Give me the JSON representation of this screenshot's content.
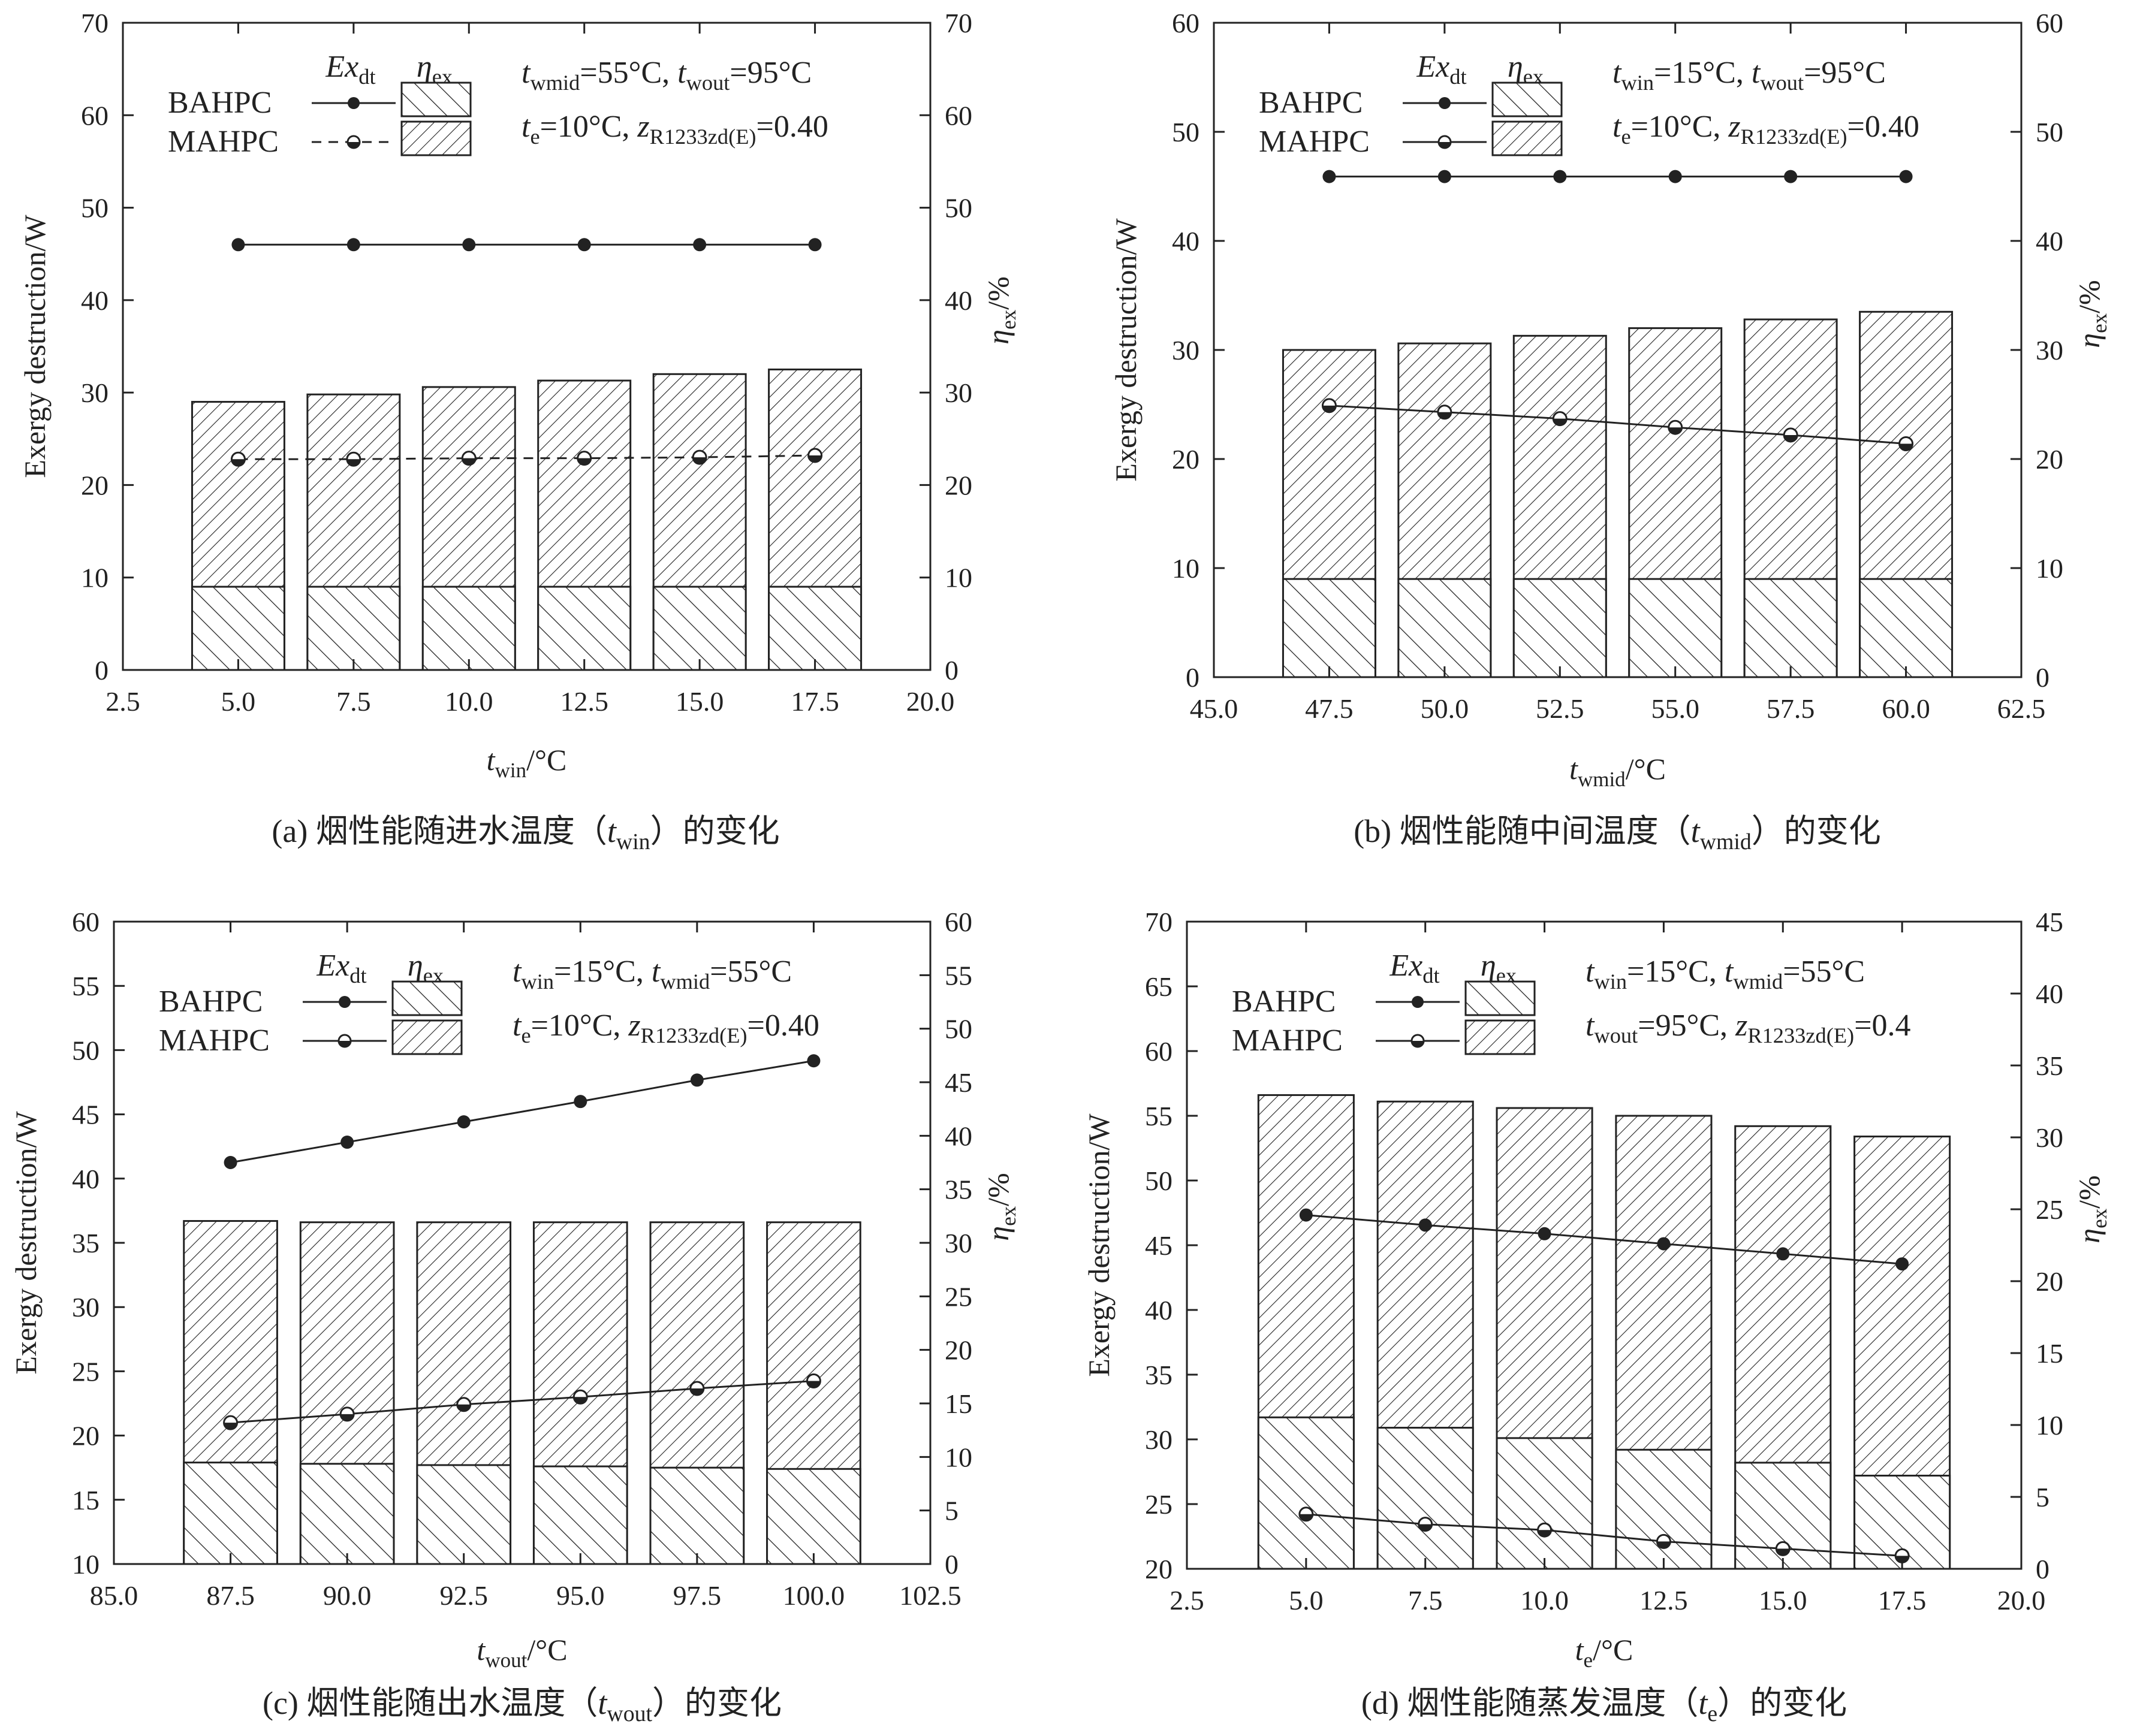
{
  "figure": {
    "legend": {
      "exdt_label": "Ex",
      "exdt_sub": "dt",
      "eta_label": "η",
      "eta_sub": "ex",
      "bahpc": "BAHPC",
      "mahpc": "MAHPC"
    },
    "y_left_label": "Exergy destruction/W",
    "y_right_label": "η",
    "y_right_sub": "ex",
    "y_right_unit": "/%"
  },
  "chart_data": [
    {
      "id": "a",
      "type": "bar",
      "caption": {
        "prefix": "(a) 烟性能随进水温度（",
        "var": "t",
        "var_sub": "win",
        "suffix": "）的变化"
      },
      "xlabel": {
        "var": "t",
        "sub": "win",
        "unit": "/°C"
      },
      "ylabel": "Exergy destruction/W",
      "y2label": "η_ex/%",
      "xlim": [
        2.5,
        20.0
      ],
      "xticks": [
        "2.5",
        "5.0",
        "7.5",
        "10.0",
        "12.5",
        "15.0",
        "17.5",
        "20.0"
      ],
      "ylim": [
        0,
        70
      ],
      "yticks": [
        0,
        10,
        20,
        30,
        40,
        50,
        60,
        70
      ],
      "y2lim": [
        0,
        70
      ],
      "y2ticks": [
        0,
        10,
        20,
        30,
        40,
        50,
        60,
        70
      ],
      "x": [
        5.0,
        7.5,
        10.0,
        12.5,
        15.0,
        17.5
      ],
      "bar_width": 2.0,
      "series": [
        {
          "name": "BAHPC Ex_dt",
          "kind": "bar",
          "values": [
            9.0,
            9.0,
            9.0,
            9.0,
            9.0,
            9.0
          ]
        },
        {
          "name": "MAHPC Ex_dt",
          "kind": "bar",
          "values": [
            29.0,
            29.8,
            30.6,
            31.3,
            32.0,
            32.5
          ]
        },
        {
          "name": "BAHPC η_ex",
          "kind": "line",
          "axis": "right",
          "values": [
            46.0,
            46.0,
            46.0,
            46.0,
            46.0,
            46.0
          ]
        },
        {
          "name": "MAHPC η_ex",
          "kind": "line",
          "axis": "right",
          "dashed": true,
          "values": [
            22.8,
            22.8,
            22.9,
            22.9,
            23.0,
            23.2
          ]
        }
      ],
      "conditions": [
        [
          {
            "v": "t",
            "s": "wmid",
            "rest": "=55°C,  "
          },
          {
            "v": "t",
            "s": "wout",
            "rest": "=95°C"
          }
        ],
        [
          {
            "v": "t",
            "s": "e",
            "rest": "=10°C,     "
          },
          {
            "v": "z",
            "s": "R1233zd(E)",
            "rest": "=0.40"
          }
        ]
      ]
    },
    {
      "id": "b",
      "type": "bar",
      "caption": {
        "prefix": "(b) 烟性能随中间温度（",
        "var": "t",
        "var_sub": "wmid",
        "suffix": "）的变化"
      },
      "xlabel": {
        "var": "t",
        "sub": "wmid",
        "unit": "/°C"
      },
      "ylabel": "Exergy destruction/W",
      "y2label": "η_ex/%",
      "xlim": [
        45.0,
        62.5
      ],
      "xticks": [
        "45.0",
        "47.5",
        "50.0",
        "52.5",
        "55.0",
        "57.5",
        "60.0",
        "62.5"
      ],
      "ylim": [
        0,
        60
      ],
      "yticks": [
        0,
        10,
        20,
        30,
        40,
        50,
        60
      ],
      "y2lim": [
        0,
        60
      ],
      "y2ticks": [
        0,
        10,
        20,
        30,
        40,
        50,
        60
      ],
      "x": [
        47.5,
        50.0,
        52.5,
        55.0,
        57.5,
        60.0
      ],
      "bar_width": 2.0,
      "series": [
        {
          "name": "BAHPC Ex_dt",
          "kind": "bar",
          "values": [
            9.0,
            9.0,
            9.0,
            9.0,
            9.0,
            9.0
          ]
        },
        {
          "name": "MAHPC Ex_dt",
          "kind": "bar",
          "values": [
            30.0,
            30.6,
            31.3,
            32.0,
            32.8,
            33.5
          ]
        },
        {
          "name": "BAHPC η_ex",
          "kind": "line",
          "axis": "right",
          "values": [
            45.9,
            45.9,
            45.9,
            45.9,
            45.9,
            45.9
          ]
        },
        {
          "name": "MAHPC η_ex",
          "kind": "line",
          "axis": "right",
          "values": [
            24.9,
            24.3,
            23.7,
            22.9,
            22.2,
            21.4
          ]
        }
      ],
      "conditions": [
        [
          {
            "v": "t",
            "s": "win",
            "rest": "=15°C,     "
          },
          {
            "v": "t",
            "s": "wout",
            "rest": "=95°C"
          }
        ],
        [
          {
            "v": "t",
            "s": "e",
            "rest": "=10°C,     "
          },
          {
            "v": "z",
            "s": "R1233zd(E)",
            "rest": "=0.40"
          }
        ]
      ]
    },
    {
      "id": "c",
      "type": "bar",
      "caption": {
        "prefix": "(c) 烟性能随出水温度（",
        "var": "t",
        "var_sub": "wout",
        "suffix": "）的变化"
      },
      "xlabel": {
        "var": "t",
        "sub": "wout",
        "unit": "/°C"
      },
      "ylabel": "Exergy destruction/W",
      "y2label": "η_ex/%",
      "xlim": [
        85.0,
        102.5
      ],
      "xticks": [
        "85.0",
        "87.5",
        "90.0",
        "92.5",
        "95.0",
        "97.5",
        "100.0",
        "102.5"
      ],
      "ylim": [
        10,
        60
      ],
      "yticks": [
        10,
        15,
        20,
        25,
        30,
        35,
        40,
        45,
        50,
        55,
        60
      ],
      "y2lim": [
        0,
        60
      ],
      "y2ticks": [
        0,
        5,
        10,
        15,
        20,
        25,
        30,
        35,
        40,
        45,
        50,
        55,
        60
      ],
      "x": [
        87.5,
        90.0,
        92.5,
        95.0,
        97.5,
        100.0
      ],
      "bar_width": 2.0,
      "series": [
        {
          "name": "BAHPC Ex_dt",
          "kind": "bar",
          "values": [
            17.9,
            17.8,
            17.7,
            17.6,
            17.5,
            17.4
          ]
        },
        {
          "name": "MAHPC Ex_dt",
          "kind": "bar",
          "values": [
            36.7,
            36.6,
            36.6,
            36.6,
            36.6,
            36.6
          ]
        },
        {
          "name": "BAHPC η_ex",
          "kind": "line",
          "axis": "right",
          "values": [
            37.5,
            39.4,
            41.3,
            43.2,
            45.2,
            47.0
          ]
        },
        {
          "name": "MAHPC η_ex",
          "kind": "line",
          "axis": "right",
          "values": [
            13.2,
            14.0,
            14.9,
            15.6,
            16.4,
            17.1
          ]
        }
      ],
      "conditions": [
        [
          {
            "v": "t",
            "s": "win",
            "rest": "=15°C,    "
          },
          {
            "v": "t",
            "s": "wmid",
            "rest": "=55°C"
          }
        ],
        [
          {
            "v": "t",
            "s": "e",
            "rest": "=10°C,     "
          },
          {
            "v": "z",
            "s": "R1233zd(E)",
            "rest": "=0.40"
          }
        ]
      ]
    },
    {
      "id": "d",
      "type": "bar",
      "caption": {
        "prefix": "(d) 烟性能随蒸发温度（",
        "var": "t",
        "var_sub": "e",
        "suffix": "）的变化"
      },
      "xlabel": {
        "var": "t",
        "sub": "e",
        "unit": "/°C"
      },
      "ylabel": "Exergy destruction/W",
      "y2label": "η_ex/%",
      "xlim": [
        2.5,
        20.0
      ],
      "xticks": [
        "2.5",
        "5.0",
        "7.5",
        "10.0",
        "12.5",
        "15.0",
        "17.5",
        "20.0"
      ],
      "ylim": [
        20,
        70
      ],
      "yticks": [
        20,
        25,
        30,
        35,
        40,
        45,
        50,
        55,
        60,
        65,
        70
      ],
      "y2lim": [
        0,
        45
      ],
      "y2ticks": [
        0,
        5,
        10,
        15,
        20,
        25,
        30,
        35,
        40,
        45
      ],
      "x": [
        5.0,
        7.5,
        10.0,
        12.5,
        15.0,
        17.5
      ],
      "bar_width": 2.0,
      "series": [
        {
          "name": "BAHPC Ex_dt",
          "kind": "bar",
          "values": [
            31.7,
            30.9,
            30.1,
            29.2,
            28.2,
            27.2
          ]
        },
        {
          "name": "MAHPC Ex_dt",
          "kind": "bar",
          "values": [
            56.6,
            56.1,
            55.6,
            55.0,
            54.2,
            53.4
          ]
        },
        {
          "name": "BAHPC η_ex",
          "kind": "line",
          "axis": "right",
          "values": [
            24.6,
            23.9,
            23.3,
            22.6,
            21.9,
            21.2
          ]
        },
        {
          "name": "MAHPC η_ex",
          "kind": "line",
          "axis": "right",
          "values": [
            3.8,
            3.1,
            2.7,
            1.9,
            1.4,
            0.9
          ]
        }
      ],
      "conditions": [
        [
          {
            "v": "t",
            "s": "win",
            "rest": "=15°C,    "
          },
          {
            "v": "t",
            "s": "wmid",
            "rest": "=55°C"
          }
        ],
        [
          {
            "v": "t",
            "s": "wout",
            "rest": "=95°C,   "
          },
          {
            "v": "z",
            "s": "R1233zd(E)",
            "rest": "=0.4"
          }
        ]
      ]
    }
  ]
}
